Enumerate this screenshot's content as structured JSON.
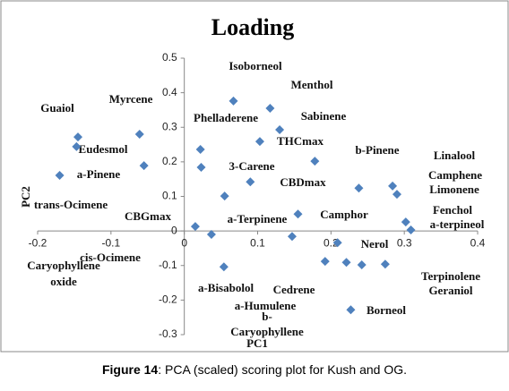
{
  "chart_data": {
    "type": "scatter",
    "title": "Loading",
    "xlabel": "PC1",
    "ylabel": "PC2",
    "x": [
      0.067,
      0.117,
      0.13,
      0.103,
      -0.145,
      -0.147,
      -0.061,
      -0.055,
      -0.17,
      0.022,
      0.023,
      0.178,
      0.238,
      0.284,
      0.29,
      0.09,
      0.055,
      0.155,
      0.015,
      0.037,
      0.147,
      0.302,
      0.309,
      0.209,
      0.054,
      0.192,
      0.221,
      0.242,
      0.274,
      0.227
    ],
    "values": [
      0.376,
      0.355,
      0.293,
      0.259,
      0.272,
      0.244,
      0.28,
      0.189,
      0.161,
      0.236,
      0.184,
      0.202,
      0.124,
      0.13,
      0.106,
      0.142,
      0.101,
      0.049,
      0.013,
      -0.01,
      -0.016,
      0.026,
      0.003,
      -0.034,
      -0.104,
      -0.088,
      -0.091,
      -0.098,
      -0.096,
      -0.228
    ],
    "color": "#4f81bd",
    "xlim": [
      -0.2,
      0.4
    ],
    "xticks": [
      -0.2,
      -0.1,
      0,
      0.1,
      0.2,
      0.3,
      0.4
    ],
    "ylim": [
      -0.3,
      0.5
    ],
    "yticks": [
      0.5,
      0.4,
      0.3,
      0.2,
      0.1,
      0,
      -0.1,
      -0.2,
      -0.3
    ],
    "grid": false,
    "annotations": [
      "Isoborneol",
      "Menthol",
      "Guaiol",
      "Myrcene",
      "Sabinene",
      "Phelladerene",
      "THCmax",
      "Eudesmol",
      "b-Pinene",
      "Linalool",
      "a-Pinene",
      "3-Carene",
      "Camphene",
      "CBDmax",
      "Limonene",
      "trans-Ocimene",
      "Fenchol",
      "CBGmax",
      "a-Terpinene",
      "Camphor",
      "a-terpineol",
      "cis-Ocimene",
      "Nerol",
      "Caryophyllene",
      "oxide",
      "Terpinolene",
      "a-Bisabolol",
      "Cedrene",
      "Geraniol",
      "a-Humulene",
      "Borneol",
      "b-",
      "Caryophyllene"
    ]
  },
  "caption": {
    "label": "Figure 14",
    "text": ": PCA (scaled) scoring plot for Kush and OG."
  }
}
